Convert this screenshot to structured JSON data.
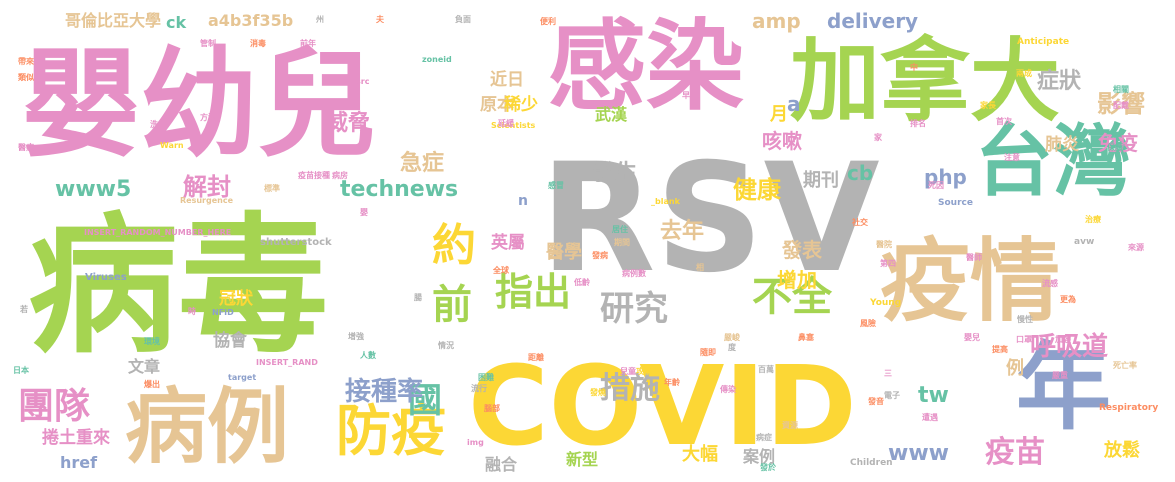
{
  "palette": {
    "pink": "#e690c6",
    "green": "#a5d451",
    "gray": "#b3b3b3",
    "yellow": "#fcd735",
    "tan": "#e6c594",
    "blue": "#8da0cb",
    "teal": "#66c2a5",
    "orange": "#fc8d62"
  },
  "words": [
    "RSV",
    "病毒",
    "嬰幼兒",
    "感染",
    "加拿大",
    "COVID",
    "疫情",
    "台灣",
    "年",
    "病例",
    "防疫",
    "國",
    "團隊",
    "疫苗",
    "接種率",
    "措施",
    "研究",
    "指出",
    "不全",
    "前",
    "約",
    "呼吸道",
    "影響",
    "症狀",
    "健康",
    "發生",
    "去年",
    "發表",
    "technews",
    "www5",
    "www",
    "delivery",
    "amp",
    "php",
    "tw",
    "解封",
    "威脅",
    "急症",
    "原本",
    "近日",
    "哥倫比亞大學",
    "a4b3f35b",
    "ck",
    "cb",
    "期刊",
    "增加",
    "醫學",
    "英屬",
    "稀少",
    "咳嗽",
    "肺炎",
    "免疫",
    "武漢",
    "月",
    "冠狀",
    "協會",
    "文章",
    "捲土重來",
    "融合",
    "新型",
    "大幅",
    "案例",
    "放鬆",
    "例",
    "href",
    "a",
    "n",
    "INSERT_RANDOM_NUMBER_HERE",
    "shutterstock",
    "Viruses",
    "Resurgence",
    "Scientists",
    "Anticipate",
    "Source",
    "Respiratory",
    "Children",
    "Young",
    "Warn",
    "zoneid",
    "src",
    "target",
    "img",
    "INSERT_RAND",
    "_blank",
    "avw",
    "NFID",
    "州",
    "夫",
    "負面",
    "嬰",
    "便利",
    "前年",
    "消毒",
    "管制",
    "帶來",
    "類似",
    "洗手",
    "方法",
    "醫療",
    "保護",
    "醫院",
    "家",
    "排名",
    "來源",
    "治療",
    "死因",
    "第四",
    "死亡率",
    "相關",
    "配戴",
    "口罩",
    "提高",
    "加護",
    "日本",
    "環境",
    "爆出",
    "腦部",
    "人數",
    "疫苗接種",
    "病房",
    "標準",
    "感冒",
    "社交",
    "距離",
    "流行",
    "攻擊",
    "全球",
    "延緩",
    "居住",
    "期間",
    "困難",
    "發病",
    "早產",
    "發音",
    "增強",
    "情況",
    "隨即",
    "流感",
    "年齡",
    "兒童",
    "百萬",
    "電子",
    "資源",
    "遭遇",
    "慢性",
    "傳染",
    "發於",
    "鼻塞",
    "發燒",
    "嚴重",
    "病例數",
    "低齡",
    "首次",
    "兩成",
    "更為",
    "風險",
    "嬰兒",
    "家長",
    "注意",
    "病症",
    "嚴峻",
    "醫師",
    "相",
    "度",
    "三",
    "中",
    "腸",
    "時",
    "若"
  ]
}
